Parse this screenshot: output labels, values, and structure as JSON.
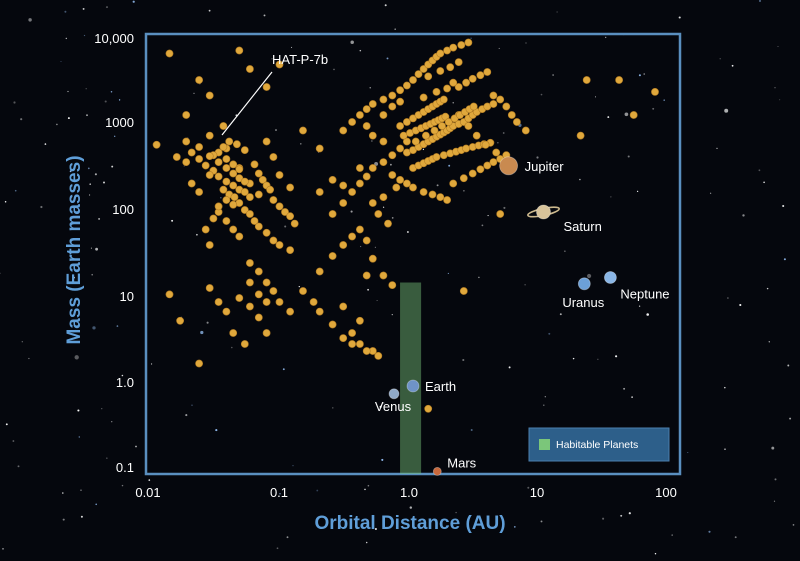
{
  "colors": {
    "background": "#05070d",
    "plot_border": "#5a8fbf",
    "axis_title": "#5f9ed8",
    "exoplanet": "#e0a83c",
    "habitable": "#7bc67a",
    "legend_bg": "#2d5f8a"
  },
  "chart_data": {
    "type": "scatter",
    "xlabel": "Orbital Distance (AU)",
    "ylabel": "Mass (Earth masses)",
    "xscale": "log",
    "yscale": "log",
    "xlim": [
      0.01,
      100
    ],
    "ylim": [
      0.1,
      10000
    ],
    "xticks": [
      "0.01",
      "0.1",
      "1.0",
      "10",
      "100"
    ],
    "yticks": [
      "0.1",
      "1.0",
      "10",
      "100",
      "1000",
      "10,000"
    ],
    "grid": false,
    "legend_position": "bottom-right",
    "legend": {
      "label": "Habitable Planets"
    },
    "habitable_zone": {
      "x_range": [
        0.8,
        1.15
      ],
      "y_range": [
        0.1,
        15
      ]
    },
    "annotation": {
      "label": "HAT-P-7b",
      "x": 0.038,
      "y": 900
    },
    "solar_system": [
      {
        "name": "Venus",
        "x": 0.72,
        "y": 0.815,
        "color": "#8fa8c8"
      },
      {
        "name": "Earth",
        "x": 1.0,
        "y": 1.0,
        "color": "#6f93c7"
      },
      {
        "name": "Mars",
        "x": 1.52,
        "y": 0.107,
        "color": "#c8683c"
      },
      {
        "name": "Jupiter",
        "x": 5.2,
        "y": 318,
        "color": "#c98a50"
      },
      {
        "name": "Saturn",
        "x": 9.5,
        "y": 95,
        "color": "#d8c39a"
      },
      {
        "name": "Uranus",
        "x": 19.2,
        "y": 14.5,
        "color": "#6ca0d8"
      },
      {
        "name": "Neptune",
        "x": 30.1,
        "y": 17.1,
        "color": "#8ab6e6"
      }
    ],
    "series": [
      {
        "points": [
          [
            0.015,
            6000
          ],
          [
            0.025,
            3000
          ],
          [
            0.03,
            2000
          ],
          [
            0.038,
            900
          ],
          [
            0.05,
            6500
          ],
          [
            0.06,
            4000
          ],
          [
            0.08,
            2500
          ],
          [
            0.1,
            4500
          ],
          [
            0.02,
            1200
          ],
          [
            0.03,
            700
          ],
          [
            0.04,
            500
          ],
          [
            0.05,
            300
          ],
          [
            0.06,
            200
          ],
          [
            0.07,
            150
          ],
          [
            0.08,
            600
          ],
          [
            0.09,
            400
          ],
          [
            0.1,
            250
          ],
          [
            0.12,
            180
          ],
          [
            0.15,
            800
          ],
          [
            0.2,
            500
          ],
          [
            0.022,
            450
          ],
          [
            0.025,
            380
          ],
          [
            0.028,
            320
          ],
          [
            0.032,
            280
          ],
          [
            0.035,
            240
          ],
          [
            0.04,
            210
          ],
          [
            0.045,
            190
          ],
          [
            0.05,
            170
          ],
          [
            0.055,
            160
          ],
          [
            0.06,
            140
          ],
          [
            0.035,
            450
          ],
          [
            0.04,
            380
          ],
          [
            0.045,
            330
          ],
          [
            0.05,
            290
          ],
          [
            0.03,
            250
          ],
          [
            0.032,
            420
          ],
          [
            0.038,
            520
          ],
          [
            0.042,
            600
          ],
          [
            0.048,
            560
          ],
          [
            0.055,
            480
          ],
          [
            0.065,
            330
          ],
          [
            0.07,
            260
          ],
          [
            0.075,
            220
          ],
          [
            0.08,
            190
          ],
          [
            0.085,
            170
          ],
          [
            0.09,
            130
          ],
          [
            0.1,
            110
          ],
          [
            0.11,
            95
          ],
          [
            0.12,
            85
          ],
          [
            0.13,
            70
          ],
          [
            0.02,
            600
          ],
          [
            0.025,
            520
          ],
          [
            0.03,
            410
          ],
          [
            0.035,
            350
          ],
          [
            0.04,
            300
          ],
          [
            0.045,
            260
          ],
          [
            0.05,
            230
          ],
          [
            0.055,
            210
          ],
          [
            0.038,
            170
          ],
          [
            0.042,
            150
          ],
          [
            0.046,
            140
          ],
          [
            0.05,
            120
          ],
          [
            0.055,
            100
          ],
          [
            0.06,
            90
          ],
          [
            0.065,
            75
          ],
          [
            0.07,
            65
          ],
          [
            0.08,
            55
          ],
          [
            0.09,
            45
          ],
          [
            0.1,
            40
          ],
          [
            0.12,
            35
          ],
          [
            0.035,
            95
          ],
          [
            0.04,
            75
          ],
          [
            0.045,
            60
          ],
          [
            0.05,
            50
          ],
          [
            0.03,
            40
          ],
          [
            0.028,
            60
          ],
          [
            0.032,
            80
          ],
          [
            0.035,
            110
          ],
          [
            0.04,
            130
          ],
          [
            0.045,
            115
          ],
          [
            0.06,
            25
          ],
          [
            0.07,
            20
          ],
          [
            0.08,
            15
          ],
          [
            0.09,
            12
          ],
          [
            0.1,
            9
          ],
          [
            0.12,
            7
          ],
          [
            0.015,
            11
          ],
          [
            0.018,
            5.5
          ],
          [
            0.025,
            1.8
          ],
          [
            0.03,
            13
          ],
          [
            0.035,
            9
          ],
          [
            0.04,
            7
          ],
          [
            0.05,
            10
          ],
          [
            0.06,
            8
          ],
          [
            0.07,
            6
          ],
          [
            0.08,
            4
          ],
          [
            0.045,
            4
          ],
          [
            0.055,
            3
          ],
          [
            0.06,
            15
          ],
          [
            0.07,
            11
          ],
          [
            0.08,
            9
          ],
          [
            0.15,
            12
          ],
          [
            0.18,
            9
          ],
          [
            0.2,
            7
          ],
          [
            0.25,
            5
          ],
          [
            0.3,
            3.5
          ],
          [
            0.35,
            3
          ],
          [
            0.4,
            3
          ],
          [
            0.5,
            2.5
          ],
          [
            0.2,
            20
          ],
          [
            0.25,
            30
          ],
          [
            0.3,
            40
          ],
          [
            0.35,
            50
          ],
          [
            0.4,
            60
          ],
          [
            0.45,
            45
          ],
          [
            0.5,
            28
          ],
          [
            0.6,
            18
          ],
          [
            0.7,
            14
          ],
          [
            0.25,
            90
          ],
          [
            0.3,
            120
          ],
          [
            0.35,
            160
          ],
          [
            0.4,
            200
          ],
          [
            0.45,
            240
          ],
          [
            0.5,
            300
          ],
          [
            0.6,
            350
          ],
          [
            0.7,
            420
          ],
          [
            0.8,
            500
          ],
          [
            0.9,
            600
          ],
          [
            0.3,
            800
          ],
          [
            0.35,
            1000
          ],
          [
            0.4,
            1200
          ],
          [
            0.45,
            1400
          ],
          [
            0.5,
            1600
          ],
          [
            0.6,
            1800
          ],
          [
            0.7,
            2000
          ],
          [
            0.8,
            2300
          ],
          [
            0.9,
            2600
          ],
          [
            1.0,
            3000
          ],
          [
            1.1,
            3500
          ],
          [
            1.2,
            4000
          ],
          [
            1.3,
            4500
          ],
          [
            1.4,
            5000
          ],
          [
            1.5,
            5500
          ],
          [
            1.6,
            6000
          ],
          [
            1.8,
            6500
          ],
          [
            2.0,
            7000
          ],
          [
            2.3,
            7500
          ],
          [
            2.6,
            8000
          ],
          [
            0.8,
            900
          ],
          [
            0.9,
            1000
          ],
          [
            1.0,
            1100
          ],
          [
            1.1,
            1200
          ],
          [
            1.2,
            1300
          ],
          [
            1.3,
            1400
          ],
          [
            1.4,
            1500
          ],
          [
            1.5,
            1600
          ],
          [
            1.6,
            1700
          ],
          [
            1.7,
            1800
          ],
          [
            0.85,
            700
          ],
          [
            0.95,
            750
          ],
          [
            1.05,
            800
          ],
          [
            1.15,
            850
          ],
          [
            1.25,
            900
          ],
          [
            1.35,
            950
          ],
          [
            1.45,
            1000
          ],
          [
            1.55,
            1050
          ],
          [
            1.65,
            1100
          ],
          [
            1.75,
            1150
          ],
          [
            0.9,
            450
          ],
          [
            1.0,
            480
          ],
          [
            1.1,
            520
          ],
          [
            1.2,
            560
          ],
          [
            1.3,
            600
          ],
          [
            1.4,
            640
          ],
          [
            1.5,
            680
          ],
          [
            1.6,
            720
          ],
          [
            1.7,
            760
          ],
          [
            1.8,
            800
          ],
          [
            1.9,
            850
          ],
          [
            2.0,
            900
          ],
          [
            2.2,
            950
          ],
          [
            2.4,
            1000
          ],
          [
            2.6,
            1100
          ],
          [
            2.8,
            1200
          ],
          [
            3.0,
            1300
          ],
          [
            3.3,
            1400
          ],
          [
            3.6,
            1500
          ],
          [
            4.0,
            1600
          ],
          [
            1.0,
            300
          ],
          [
            1.1,
            320
          ],
          [
            1.2,
            340
          ],
          [
            1.3,
            360
          ],
          [
            1.4,
            380
          ],
          [
            1.5,
            400
          ],
          [
            1.7,
            420
          ],
          [
            1.9,
            440
          ],
          [
            2.1,
            460
          ],
          [
            2.3,
            480
          ],
          [
            2.5,
            500
          ],
          [
            2.8,
            520
          ],
          [
            3.1,
            540
          ],
          [
            3.4,
            560
          ],
          [
            3.8,
            580
          ],
          [
            0.7,
            250
          ],
          [
            0.8,
            220
          ],
          [
            0.9,
            200
          ],
          [
            1.0,
            180
          ],
          [
            1.2,
            160
          ],
          [
            1.4,
            150
          ],
          [
            1.6,
            140
          ],
          [
            1.8,
            130
          ],
          [
            2.0,
            200
          ],
          [
            2.4,
            230
          ],
          [
            2.8,
            260
          ],
          [
            3.2,
            290
          ],
          [
            3.6,
            320
          ],
          [
            4.0,
            350
          ],
          [
            4.5,
            380
          ],
          [
            5.0,
            420
          ],
          [
            0.6,
            1200
          ],
          [
            0.7,
            1500
          ],
          [
            0.8,
            1700
          ],
          [
            2.2,
            2500
          ],
          [
            2.5,
            2800
          ],
          [
            2.8,
            3100
          ],
          [
            3.2,
            3400
          ],
          [
            3.6,
            3700
          ],
          [
            4.0,
            2000
          ],
          [
            4.5,
            1800
          ],
          [
            5.0,
            1500
          ],
          [
            5.5,
            1200
          ],
          [
            6.0,
            1000
          ],
          [
            7.0,
            800
          ],
          [
            0.5,
            120
          ],
          [
            0.6,
            140
          ],
          [
            0.55,
            90
          ],
          [
            0.65,
            70
          ],
          [
            0.75,
            180
          ],
          [
            2.2,
            1200
          ],
          [
            2.6,
            900
          ],
          [
            3.0,
            700
          ],
          [
            3.5,
            550
          ],
          [
            4.2,
            450
          ],
          [
            0.012,
            550
          ],
          [
            0.017,
            400
          ],
          [
            0.02,
            350
          ],
          [
            0.022,
            200
          ],
          [
            0.025,
            160
          ],
          [
            1.2,
            1900
          ],
          [
            1.5,
            2200
          ],
          [
            1.8,
            2400
          ],
          [
            2.0,
            2800
          ],
          [
            1.3,
            3300
          ],
          [
            1.6,
            3800
          ],
          [
            1.9,
            4200
          ],
          [
            2.2,
            4800
          ],
          [
            1.05,
            600
          ],
          [
            1.25,
            700
          ],
          [
            1.45,
            800
          ],
          [
            1.65,
            900
          ],
          [
            1.85,
            1000
          ],
          [
            2.05,
            1100
          ],
          [
            2.25,
            1200
          ],
          [
            2.45,
            1300
          ],
          [
            2.65,
            1400
          ],
          [
            2.85,
            1500
          ],
          [
            20,
            3000
          ],
          [
            35,
            3000
          ],
          [
            45,
            1200
          ],
          [
            65,
            2200
          ],
          [
            18,
            700
          ],
          [
            4.5,
            90
          ],
          [
            0.35,
            4
          ],
          [
            2.4,
            12
          ],
          [
            1.3,
            0.55
          ],
          [
            0.55,
            2.2
          ],
          [
            0.45,
            2.5
          ],
          [
            0.4,
            5.5
          ],
          [
            0.3,
            8
          ],
          [
            0.45,
            18
          ],
          [
            0.2,
            160
          ],
          [
            0.25,
            220
          ],
          [
            0.3,
            190
          ],
          [
            0.4,
            300
          ],
          [
            0.6,
            600
          ],
          [
            0.5,
            700
          ],
          [
            0.45,
            900
          ]
        ]
      }
    ]
  }
}
